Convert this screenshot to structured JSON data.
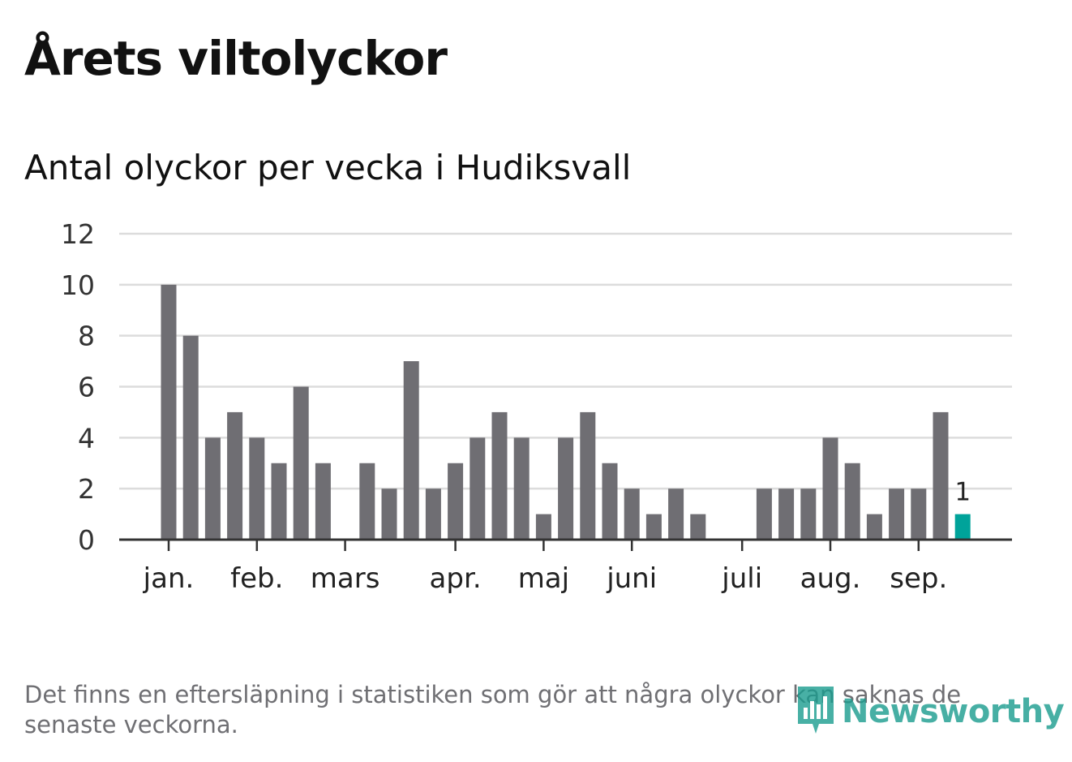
{
  "title": "Årets viltolyckor",
  "subtitle": "Antal olyckor per vecka i Hudiksvall",
  "footnote": "Det finns en eftersläpning i statistiken som gör att några olyckor kan saknas de senaste veckorna.",
  "brand": "Newsworthy",
  "colors": {
    "bar": "#6f6e73",
    "highlight": "#00a39a",
    "grid": "#dcdcdc",
    "axis": "#333333",
    "text": "#333333",
    "brand": "#1a9c8e"
  },
  "chart_data": {
    "type": "bar",
    "title": "Antal olyckor per vecka i Hudiksvall",
    "xlabel": "",
    "ylabel": "",
    "ylim": [
      0,
      12
    ],
    "yticks": [
      0,
      2,
      4,
      6,
      8,
      10,
      12
    ],
    "grid": true,
    "values": [
      10,
      8,
      4,
      5,
      4,
      3,
      6,
      3,
      0,
      3,
      2,
      7,
      2,
      3,
      4,
      5,
      4,
      1,
      4,
      5,
      3,
      2,
      1,
      2,
      1,
      0,
      0,
      2,
      2,
      2,
      4,
      3,
      1,
      2,
      2,
      5,
      1
    ],
    "highlight_index": 36,
    "highlight_label": "1",
    "month_labels": [
      {
        "label": "jan.",
        "week_index": 0
      },
      {
        "label": "feb.",
        "week_index": 4
      },
      {
        "label": "mars",
        "week_index": 8
      },
      {
        "label": "apr.",
        "week_index": 13
      },
      {
        "label": "maj",
        "week_index": 17
      },
      {
        "label": "juni",
        "week_index": 21
      },
      {
        "label": "juli",
        "week_index": 26
      },
      {
        "label": "aug.",
        "week_index": 30
      },
      {
        "label": "sep.",
        "week_index": 34
      }
    ]
  }
}
